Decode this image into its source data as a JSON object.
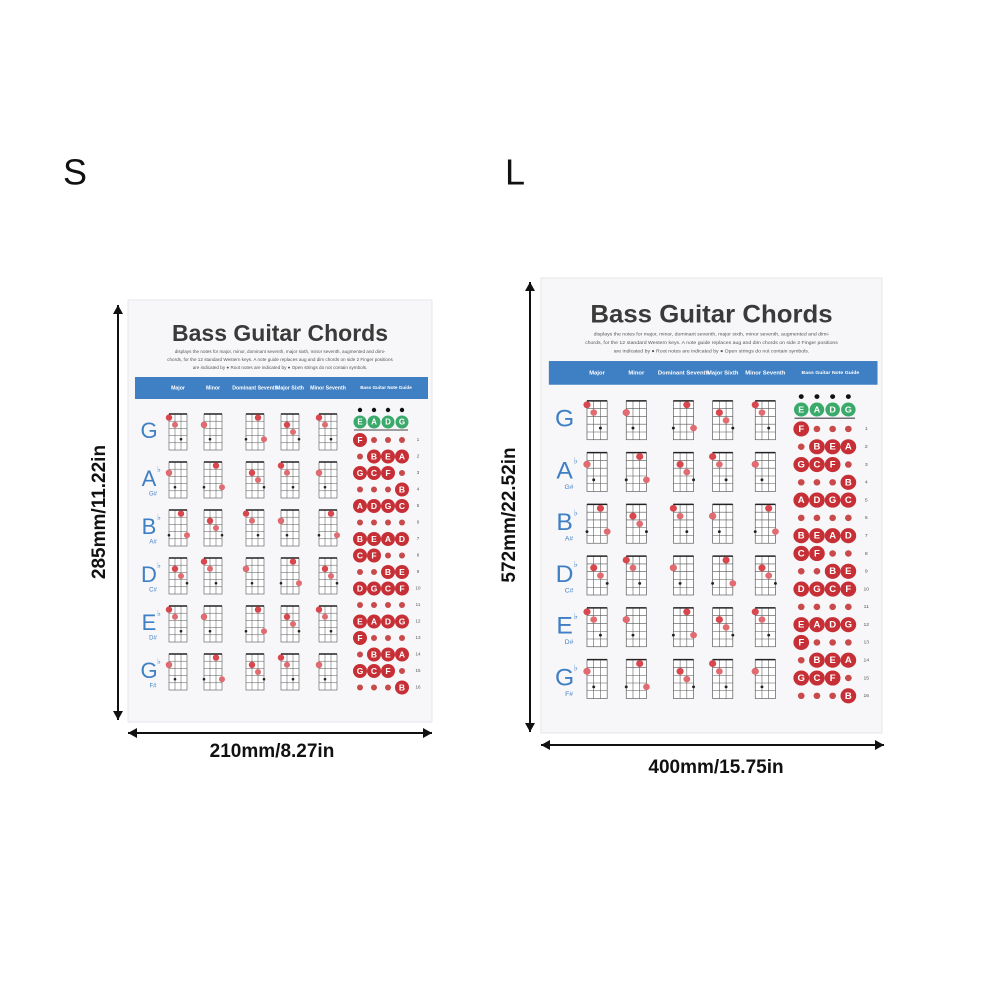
{
  "sizes": [
    {
      "label": "S",
      "height_label": "285mm/11.22in",
      "width_label": "210mm/8.27in"
    },
    {
      "label": "L",
      "height_label": "572mm/22.52in",
      "width_label": "400mm/15.75in"
    }
  ],
  "poster": {
    "title": "Bass Guitar Chords",
    "description": [
      "displays the notes for major, minor, dominant seventh, major sixth, minor seventh, augmented and dimi-",
      "chords, for the 12 standard Western keys. A note guide replaces aug and dim chords on side 2 Finger positions",
      "are indicated by ● Root notes are indicated by ● Open strings do not contain symbols."
    ],
    "columns": [
      "Major",
      "Minor",
      "Dominant Seventh",
      "Major Sixth",
      "Minor Seventh",
      "Bass Guitar Note Guide"
    ],
    "keys": [
      {
        "letter": "G"
      },
      {
        "letter": "A",
        "accidental": "♭",
        "alt": "G#"
      },
      {
        "letter": "B",
        "accidental": "♭",
        "alt": "A#"
      },
      {
        "letter": "D",
        "accidental": "♭",
        "alt": "C#"
      },
      {
        "letter": "E",
        "accidental": "♭",
        "alt": "D#"
      },
      {
        "letter": "G",
        "accidental": "♭",
        "alt": "F#"
      }
    ],
    "open_strings": [
      "E",
      "A",
      "D",
      "G"
    ],
    "frets": [
      1,
      2,
      3,
      4,
      5,
      6,
      7,
      8,
      9,
      10,
      11,
      12,
      13,
      14,
      15,
      16
    ],
    "note_guide": [
      [
        "F",
        null,
        null,
        null
      ],
      [
        null,
        "B",
        "E",
        "A"
      ],
      [
        "G",
        "C",
        "F",
        null
      ],
      [
        null,
        null,
        null,
        "B"
      ],
      [
        "A",
        "D",
        "G",
        "C"
      ],
      [
        null,
        null,
        null,
        null
      ],
      [
        "B",
        "E",
        "A",
        "D"
      ],
      [
        "C",
        "F",
        null,
        null
      ],
      [
        null,
        null,
        "B",
        "E"
      ],
      [
        "D",
        "G",
        "C",
        "F"
      ],
      [
        null,
        null,
        null,
        null
      ],
      [
        "E",
        "A",
        "D",
        "G"
      ],
      [
        "F",
        null,
        null,
        null
      ],
      [
        null,
        "B",
        "E",
        "A"
      ],
      [
        "G",
        "C",
        "F",
        null
      ],
      [
        null,
        null,
        null,
        "B"
      ]
    ]
  }
}
